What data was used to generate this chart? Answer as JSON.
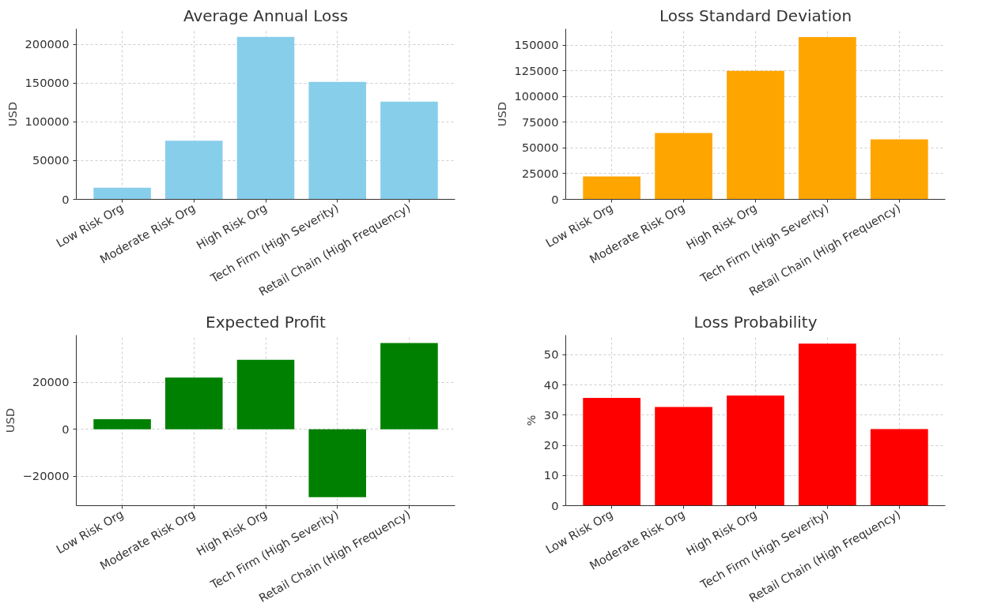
{
  "chart_data": [
    {
      "type": "bar",
      "title": "Average Annual Loss",
      "ylabel": "USD",
      "categories": [
        "Low Risk Org",
        "Moderate Risk Org",
        "High Risk Org",
        "Tech Firm (High Severity)",
        "Retail Chain (High Frequency)"
      ],
      "values": [
        15000,
        75500,
        209500,
        151500,
        126000
      ],
      "color": "#87ceeb",
      "ylim": [
        0,
        220000
      ],
      "yticks": [
        0,
        50000,
        100000,
        150000,
        200000
      ],
      "grid": true
    },
    {
      "type": "bar",
      "title": "Loss Standard Deviation",
      "ylabel": "USD",
      "categories": [
        "Low Risk Org",
        "Moderate Risk Org",
        "High Risk Org",
        "Tech Firm (High Severity)",
        "Retail Chain (High Frequency)"
      ],
      "values": [
        22200,
        64600,
        125000,
        157900,
        58400
      ],
      "color": "#ffa500",
      "ylim": [
        0,
        166000
      ],
      "yticks": [
        0,
        25000,
        50000,
        75000,
        100000,
        125000,
        150000
      ],
      "grid": true
    },
    {
      "type": "bar",
      "title": "Expected Profit",
      "ylabel": "USD",
      "categories": [
        "Low Risk Org",
        "Moderate Risk Org",
        "High Risk Org",
        "Tech Firm (High Severity)",
        "Retail Chain (High Frequency)"
      ],
      "values": [
        4300,
        22000,
        29600,
        -28900,
        36700
      ],
      "color": "#008000",
      "ylim": [
        -32500,
        40100
      ],
      "yticks": [
        {
          "value": -20000,
          "label": "−20000"
        },
        0,
        20000
      ],
      "grid": true
    },
    {
      "type": "bar",
      "title": "Loss Probability",
      "ylabel": "%",
      "categories": [
        "Low Risk Org",
        "Moderate Risk Org",
        "High Risk Org",
        "Tech Firm (High Severity)",
        "Retail Chain (High Frequency)"
      ],
      "values": [
        35.7,
        32.7,
        36.5,
        53.7,
        25.4
      ],
      "color": "#ff0000",
      "ylim": [
        0,
        56.5
      ],
      "yticks": [
        0,
        10,
        20,
        30,
        40,
        50
      ],
      "grid": true
    }
  ]
}
